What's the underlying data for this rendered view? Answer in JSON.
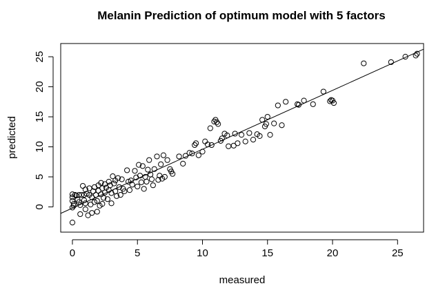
{
  "chart_data": {
    "type": "scatter",
    "title": "Melanin Prediction of optimum model with 5 factors",
    "xlabel": "measured",
    "ylabel": "predicted",
    "xlim": [
      -0.9,
      27.0
    ],
    "ylim": [
      -4.2,
      27.2
    ],
    "xticks": [
      0,
      5,
      10,
      15,
      20,
      25
    ],
    "xtick_labels": [
      "0",
      "5",
      "10",
      "15",
      "20",
      "25"
    ],
    "yticks": [
      0,
      5,
      10,
      15,
      20,
      25
    ],
    "ytick_labels": [
      "0",
      "5",
      "10",
      "15",
      "20",
      "25"
    ],
    "grid": false,
    "marker": "open-circle",
    "fit_line": {
      "intercept": -0.2,
      "slope": 0.98
    },
    "points": [
      [
        0.0,
        -2.6
      ],
      [
        0.0,
        2.1
      ],
      [
        0.0,
        1.6
      ],
      [
        0.0,
        1.0
      ],
      [
        0.1,
        0.5
      ],
      [
        0.0,
        -0.1
      ],
      [
        0.1,
        0.2
      ],
      [
        0.2,
        2.0
      ],
      [
        0.3,
        1.9
      ],
      [
        0.4,
        1.2
      ],
      [
        0.5,
        2.0
      ],
      [
        0.5,
        0.8
      ],
      [
        0.6,
        -1.2
      ],
      [
        0.6,
        0.3
      ],
      [
        0.7,
        2.0
      ],
      [
        0.8,
        3.5
      ],
      [
        0.9,
        2.0
      ],
      [
        0.9,
        1.1
      ],
      [
        1.0,
        2.9
      ],
      [
        1.0,
        0.6
      ],
      [
        1.0,
        -0.4
      ],
      [
        1.1,
        2.2
      ],
      [
        1.2,
        -1.4
      ],
      [
        1.3,
        3.1
      ],
      [
        1.3,
        2.0
      ],
      [
        1.4,
        0.4
      ],
      [
        1.5,
        1.6
      ],
      [
        1.5,
        -1.0
      ],
      [
        1.6,
        2.6
      ],
      [
        1.7,
        3.3
      ],
      [
        1.7,
        0.8
      ],
      [
        1.8,
        2.0
      ],
      [
        1.9,
        1.0
      ],
      [
        1.9,
        -0.8
      ],
      [
        2.0,
        3.6
      ],
      [
        2.0,
        2.7
      ],
      [
        2.1,
        0.2
      ],
      [
        2.2,
        4.0
      ],
      [
        2.2,
        2.1
      ],
      [
        2.3,
        3.1
      ],
      [
        2.3,
        0.5
      ],
      [
        2.4,
        1.5
      ],
      [
        2.5,
        3.8
      ],
      [
        2.5,
        2.4
      ],
      [
        2.6,
        3.2
      ],
      [
        2.7,
        1.3
      ],
      [
        2.8,
        2.8
      ],
      [
        2.8,
        4.2
      ],
      [
        2.9,
        3.6
      ],
      [
        3.0,
        0.6
      ],
      [
        3.0,
        2.3
      ],
      [
        3.1,
        5.1
      ],
      [
        3.2,
        3.9
      ],
      [
        3.3,
        4.4
      ],
      [
        3.3,
        2.6
      ],
      [
        3.4,
        1.8
      ],
      [
        3.5,
        4.8
      ],
      [
        3.6,
        3.3
      ],
      [
        3.7,
        2.0
      ],
      [
        3.8,
        4.6
      ],
      [
        3.9,
        3.0
      ],
      [
        4.0,
        2.6
      ],
      [
        4.2,
        6.1
      ],
      [
        4.3,
        4.2
      ],
      [
        4.4,
        2.8
      ],
      [
        4.5,
        4.4
      ],
      [
        4.6,
        3.7
      ],
      [
        4.8,
        6.0
      ],
      [
        4.9,
        4.9
      ],
      [
        5.0,
        3.4
      ],
      [
        5.1,
        7.0
      ],
      [
        5.2,
        5.2
      ],
      [
        5.3,
        4.1
      ],
      [
        5.4,
        6.8
      ],
      [
        5.5,
        3.0
      ],
      [
        5.6,
        5.0
      ],
      [
        5.7,
        4.2
      ],
      [
        5.8,
        6.2
      ],
      [
        5.9,
        7.8
      ],
      [
        6.0,
        5.4
      ],
      [
        6.1,
        4.6
      ],
      [
        6.2,
        3.6
      ],
      [
        6.3,
        6.3
      ],
      [
        6.5,
        8.4
      ],
      [
        6.6,
        4.5
      ],
      [
        6.7,
        5.2
      ],
      [
        6.8,
        7.1
      ],
      [
        6.9,
        4.7
      ],
      [
        7.0,
        8.6
      ],
      [
        7.1,
        5.0
      ],
      [
        7.3,
        7.8
      ],
      [
        7.5,
        6.3
      ],
      [
        7.6,
        5.9
      ],
      [
        7.7,
        5.5
      ],
      [
        8.2,
        8.4
      ],
      [
        8.5,
        7.2
      ],
      [
        8.7,
        8.5
      ],
      [
        9.0,
        9.0
      ],
      [
        9.2,
        8.9
      ],
      [
        9.4,
        10.3
      ],
      [
        9.5,
        10.6
      ],
      [
        9.7,
        8.6
      ],
      [
        10.0,
        9.2
      ],
      [
        10.2,
        10.9
      ],
      [
        10.4,
        10.4
      ],
      [
        10.6,
        13.1
      ],
      [
        10.7,
        10.3
      ],
      [
        10.9,
        14.2
      ],
      [
        11.0,
        14.5
      ],
      [
        11.1,
        14.1
      ],
      [
        11.2,
        13.8
      ],
      [
        11.4,
        11.0
      ],
      [
        11.5,
        11.4
      ],
      [
        11.7,
        12.2
      ],
      [
        11.9,
        11.9
      ],
      [
        12.0,
        10.1
      ],
      [
        12.4,
        10.2
      ],
      [
        12.5,
        12.2
      ],
      [
        12.7,
        10.6
      ],
      [
        13.0,
        12.0
      ],
      [
        13.3,
        10.9
      ],
      [
        13.6,
        12.3
      ],
      [
        13.9,
        11.2
      ],
      [
        14.2,
        12.1
      ],
      [
        14.4,
        11.8
      ],
      [
        14.6,
        14.5
      ],
      [
        14.8,
        13.4
      ],
      [
        14.9,
        13.8
      ],
      [
        15.0,
        15.0
      ],
      [
        15.2,
        12.0
      ],
      [
        15.5,
        13.9
      ],
      [
        15.8,
        16.9
      ],
      [
        16.1,
        13.6
      ],
      [
        16.4,
        17.5
      ],
      [
        17.3,
        17.1
      ],
      [
        17.4,
        17.0
      ],
      [
        17.8,
        17.7
      ],
      [
        18.5,
        17.1
      ],
      [
        19.3,
        19.2
      ],
      [
        19.8,
        17.6
      ],
      [
        19.9,
        17.8
      ],
      [
        20.0,
        17.7
      ],
      [
        20.1,
        17.3
      ],
      [
        22.4,
        23.9
      ],
      [
        24.5,
        24.1
      ],
      [
        25.6,
        25.0
      ],
      [
        26.4,
        25.2
      ],
      [
        26.5,
        25.5
      ]
    ]
  }
}
